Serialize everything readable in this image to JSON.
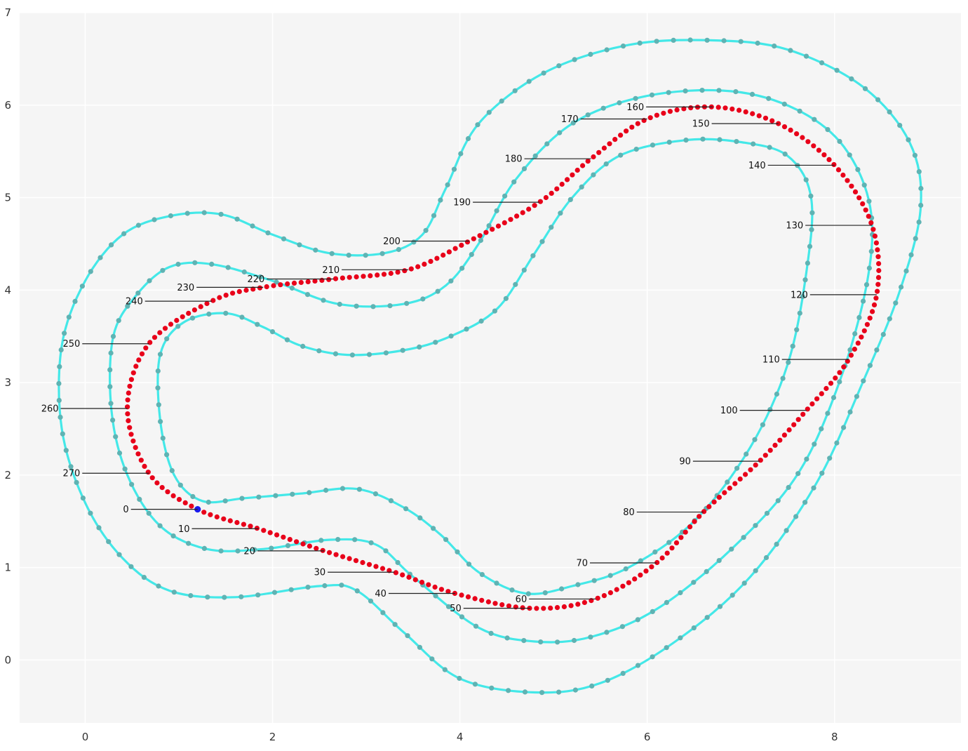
{
  "chart_data": {
    "type": "scatter",
    "title": "",
    "xlabel": "",
    "ylabel": "",
    "xlim": [
      -0.7,
      9.35
    ],
    "ylim": [
      -0.68,
      7.0
    ],
    "grid": true,
    "background": "#f5f5f5",
    "x_ticks": [
      0,
      2,
      4,
      6,
      8
    ],
    "y_ticks": [
      0,
      1,
      2,
      3,
      4,
      5,
      6,
      7
    ],
    "x_tick_labels": [
      "0",
      "2",
      "4",
      "6",
      "8"
    ],
    "y_tick_labels": [
      "0",
      "1",
      "2",
      "3",
      "4",
      "5",
      "6",
      "7"
    ],
    "colors": {
      "border_line": "#44e8e8",
      "border_dots": "#5fb3b3",
      "waypoints": "#e8001a",
      "start_point": "#1a1aee",
      "leader_line": "#222222"
    },
    "series": [
      {
        "role": "outer-border",
        "points": [
          [
            1.45,
            4.82
          ],
          [
            2.0,
            4.6
          ],
          [
            2.6,
            4.4
          ],
          [
            3.2,
            4.4
          ],
          [
            3.6,
            4.6
          ],
          [
            3.85,
            5.1
          ],
          [
            4.2,
            5.8
          ],
          [
            4.9,
            6.35
          ],
          [
            5.8,
            6.65
          ],
          [
            6.7,
            6.7
          ],
          [
            7.5,
            6.6
          ],
          [
            8.3,
            6.2
          ],
          [
            8.8,
            5.6
          ],
          [
            8.92,
            4.9
          ],
          [
            8.7,
            4.0
          ],
          [
            8.3,
            3.0
          ],
          [
            7.8,
            1.9
          ],
          [
            7.1,
            0.9
          ],
          [
            6.3,
            0.2
          ],
          [
            5.5,
            -0.25
          ],
          [
            4.8,
            -0.35
          ],
          [
            4.0,
            -0.2
          ],
          [
            3.4,
            0.3
          ],
          [
            2.9,
            0.75
          ],
          [
            2.5,
            0.8
          ],
          [
            1.6,
            0.68
          ],
          [
            0.9,
            0.75
          ],
          [
            0.4,
            1.1
          ],
          [
            0.0,
            1.7
          ],
          [
            -0.25,
            2.5
          ],
          [
            -0.25,
            3.4
          ],
          [
            0.0,
            4.1
          ],
          [
            0.4,
            4.6
          ],
          [
            0.9,
            4.8
          ]
        ],
        "closed": true
      },
      {
        "role": "center-line",
        "points": [
          [
            1.35,
            4.28
          ],
          [
            2.0,
            4.1
          ],
          [
            2.7,
            3.85
          ],
          [
            3.4,
            3.85
          ],
          [
            3.85,
            4.05
          ],
          [
            4.2,
            4.5
          ],
          [
            4.6,
            5.2
          ],
          [
            5.2,
            5.8
          ],
          [
            6.0,
            6.1
          ],
          [
            6.9,
            6.15
          ],
          [
            7.6,
            5.95
          ],
          [
            8.1,
            5.55
          ],
          [
            8.38,
            4.9
          ],
          [
            8.35,
            4.1
          ],
          [
            8.05,
            3.0
          ],
          [
            7.6,
            2.0
          ],
          [
            6.9,
            1.2
          ],
          [
            6.1,
            0.55
          ],
          [
            5.4,
            0.25
          ],
          [
            4.8,
            0.2
          ],
          [
            4.2,
            0.35
          ],
          [
            3.5,
            0.9
          ],
          [
            3.1,
            1.25
          ],
          [
            2.6,
            1.3
          ],
          [
            1.9,
            1.2
          ],
          [
            1.3,
            1.2
          ],
          [
            0.8,
            1.45
          ],
          [
            0.45,
            2.0
          ],
          [
            0.28,
            2.7
          ],
          [
            0.3,
            3.5
          ],
          [
            0.55,
            3.95
          ],
          [
            0.9,
            4.25
          ]
        ],
        "closed": true
      },
      {
        "role": "inner-border",
        "points": [
          [
            1.5,
            3.75
          ],
          [
            1.9,
            3.6
          ],
          [
            2.3,
            3.4
          ],
          [
            2.8,
            3.3
          ],
          [
            3.4,
            3.35
          ],
          [
            3.9,
            3.5
          ],
          [
            4.4,
            3.8
          ],
          [
            4.8,
            4.4
          ],
          [
            5.2,
            5.0
          ],
          [
            5.7,
            5.45
          ],
          [
            6.4,
            5.62
          ],
          [
            7.0,
            5.6
          ],
          [
            7.5,
            5.45
          ],
          [
            7.75,
            5.0
          ],
          [
            7.7,
            4.2
          ],
          [
            7.5,
            3.2
          ],
          [
            7.1,
            2.3
          ],
          [
            6.5,
            1.5
          ],
          [
            5.8,
            1.0
          ],
          [
            5.2,
            0.8
          ],
          [
            4.7,
            0.72
          ],
          [
            4.2,
            0.95
          ],
          [
            3.8,
            1.35
          ],
          [
            3.4,
            1.65
          ],
          [
            2.9,
            1.85
          ],
          [
            2.3,
            1.8
          ],
          [
            1.7,
            1.75
          ],
          [
            1.25,
            1.72
          ],
          [
            0.95,
            2.0
          ],
          [
            0.8,
            2.6
          ],
          [
            0.8,
            3.3
          ],
          [
            1.05,
            3.65
          ]
        ],
        "closed": true
      },
      {
        "role": "waypoints",
        "labels": [
          "0",
          "10",
          "20",
          "30",
          "40",
          "50",
          "60",
          "70",
          "80",
          "90",
          "100",
          "110",
          "120",
          "130",
          "140",
          "150",
          "160",
          "170",
          "180",
          "190",
          "200",
          "210",
          "220",
          "230",
          "240",
          "250",
          "260",
          "270"
        ],
        "points": [
          [
            1.2,
            1.63
          ],
          [
            1.85,
            1.42
          ],
          [
            2.55,
            1.18
          ],
          [
            3.3,
            0.95
          ],
          [
            3.95,
            0.72
          ],
          [
            4.75,
            0.56
          ],
          [
            5.45,
            0.66
          ],
          [
            6.1,
            1.05
          ],
          [
            6.6,
            1.6
          ],
          [
            7.2,
            2.15
          ],
          [
            7.7,
            2.7
          ],
          [
            8.15,
            3.25
          ],
          [
            8.45,
            3.95
          ],
          [
            8.4,
            4.7
          ],
          [
            8.0,
            5.35
          ],
          [
            7.4,
            5.8
          ],
          [
            6.7,
            5.98
          ],
          [
            6.0,
            5.85
          ],
          [
            5.4,
            5.42
          ],
          [
            4.85,
            4.95
          ],
          [
            4.1,
            4.53
          ],
          [
            3.45,
            4.22
          ],
          [
            2.65,
            4.12
          ],
          [
            1.9,
            4.03
          ],
          [
            1.35,
            3.88
          ],
          [
            0.68,
            3.42
          ],
          [
            0.45,
            2.72
          ],
          [
            0.68,
            2.02
          ]
        ],
        "closed": true
      }
    ]
  }
}
